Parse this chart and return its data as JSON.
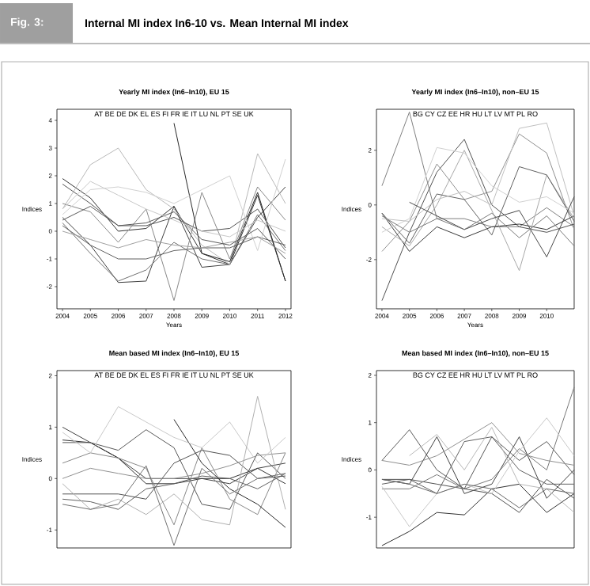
{
  "chart_data": [
    {
      "type": "line",
      "title": "Yearly MI index (In6–In10), EU 15",
      "xlabel": "Years",
      "ylabel": "Indices",
      "annotations": [
        "Fig. 3:",
        "Internal MI index In6-10 vs. Mean Internal MI index",
        "AT BE DE DK EL ES FI FR IE IT LU NL PT SE UK"
      ],
      "x": [
        2004,
        2005,
        2006,
        2007,
        2008,
        2009,
        2010,
        2011,
        2012
      ],
      "xlim": [
        2003.8,
        2012.2
      ],
      "ylim": [
        -2.8,
        4.4
      ],
      "xticks": [
        2004,
        2005,
        2006,
        2007,
        2008,
        2009,
        2010,
        2011,
        2012
      ],
      "yticks": [
        -2,
        -1,
        0,
        1,
        2,
        3,
        4
      ],
      "series": [
        {
          "color": "#303030",
          "values": [
            1.9,
            1.2,
            0.0,
            0.1,
            0.9,
            -0.8,
            -1.2,
            1.3,
            -1.8
          ]
        },
        {
          "color": "#505050",
          "values": [
            1.7,
            1.0,
            0.2,
            0.2,
            0.5,
            0.0,
            0.1,
            0.8,
            -0.6
          ]
        },
        {
          "color": "#404040",
          "values": [
            0.5,
            -0.5,
            -1.85,
            -1.8,
            0.9,
            -1.3,
            -1.2,
            0.5,
            1.6
          ]
        },
        {
          "color": "#707070",
          "values": [
            0.3,
            -0.8,
            -1.8,
            -1.4,
            -0.4,
            -1.0,
            -1.2,
            0.6,
            -0.7
          ]
        },
        {
          "color": "#b8b8b8",
          "values": [
            0.8,
            2.4,
            3.0,
            1.5,
            0.8,
            -0.5,
            -1.2,
            2.8,
            1.0
          ]
        },
        {
          "color": "#888888",
          "values": [
            1.0,
            0.7,
            -0.4,
            0.8,
            -2.5,
            1.4,
            -1.0,
            1.6,
            0.4
          ]
        },
        {
          "color": "#282828",
          "values": [
            null,
            null,
            null,
            null,
            3.9,
            -0.8,
            -1.1,
            1.4,
            -1.8
          ]
        },
        {
          "color": "#606060",
          "values": [
            0.2,
            -0.5,
            -1.0,
            -1.0,
            -0.7,
            -0.6,
            -0.6,
            -0.2,
            -0.5
          ]
        },
        {
          "color": "#d0d0d0",
          "values": [
            0.6,
            1.5,
            1.6,
            1.4,
            1.0,
            1.5,
            2.0,
            -0.7,
            2.6
          ]
        },
        {
          "color": "#a0a0a0",
          "values": [
            0.0,
            -0.3,
            -0.6,
            -0.3,
            -0.5,
            -0.6,
            -0.4,
            -0.2,
            -0.8
          ]
        },
        {
          "color": "#585858",
          "values": [
            0.4,
            0.9,
            0.2,
            0.3,
            0.7,
            -0.3,
            -0.5,
            0.1,
            -1.0
          ]
        },
        {
          "color": "#c8c8c8",
          "values": [
            0.8,
            1.8,
            1.3,
            0.8,
            0.4,
            0.0,
            -0.2,
            0.4,
            0.0
          ]
        }
      ]
    },
    {
      "type": "line",
      "title": "Yearly MI index (In6–In10), non–EU 15",
      "xlabel": "Years",
      "ylabel": "Indices",
      "annotations": [
        "BG CY CZ EE HR HU LT LV MT PL RO"
      ],
      "x": [
        2004,
        2005,
        2006,
        2007,
        2008,
        2009,
        2010,
        2011
      ],
      "xlim": [
        2003.8,
        2011.0
      ],
      "ylim": [
        -3.8,
        3.5
      ],
      "xticks": [
        2004,
        2005,
        2006,
        2007,
        2008,
        2009,
        2010
      ],
      "yticks": [
        -2,
        0,
        2
      ],
      "series": [
        {
          "color": "#808080",
          "values": [
            0.7,
            3.4,
            -0.5,
            -0.5,
            -0.8,
            -0.8,
            -0.1,
            -0.8
          ]
        },
        {
          "color": "#909090",
          "values": [
            -1.7,
            -0.6,
            1.5,
            0.2,
            0.5,
            2.6,
            1.9,
            -0.9
          ]
        },
        {
          "color": "#505050",
          "values": [
            -3.5,
            -1.0,
            1.2,
            2.4,
            0.0,
            -0.8,
            -1.0,
            -0.7
          ]
        },
        {
          "color": "#383838",
          "values": [
            -0.3,
            -1.7,
            -0.8,
            -1.2,
            -0.8,
            -0.7,
            -0.9,
            -0.4
          ]
        },
        {
          "color": "#a8a8a8",
          "values": [
            -0.8,
            -1.5,
            0.0,
            2.0,
            -0.2,
            -2.4,
            1.1,
            -0.5
          ]
        },
        {
          "color": "#606060",
          "values": [
            -0.3,
            -1.4,
            0.4,
            0.2,
            -1.1,
            1.4,
            1.1,
            -0.6
          ]
        },
        {
          "color": "#d0d0d0",
          "values": [
            -1.0,
            -0.5,
            2.1,
            1.9,
            0.7,
            0.1,
            0.3,
            -0.3
          ]
        },
        {
          "color": "#c0c0c0",
          "values": [
            -0.5,
            -0.6,
            0.2,
            0.5,
            0.0,
            2.8,
            3.0,
            -0.4
          ]
        },
        {
          "color": "#484848",
          "values": [
            null,
            0.1,
            -0.4,
            -0.9,
            -0.5,
            -0.2,
            -1.9,
            0.3
          ]
        },
        {
          "color": "#787878",
          "values": [
            -0.4,
            -1.0,
            -0.5,
            -0.9,
            -0.3,
            -1.2,
            -0.4,
            -1.5
          ]
        }
      ]
    },
    {
      "type": "line",
      "title": "Mean based MI index (In6–In10), EU 15",
      "ylabel": "Indices",
      "annotations": [
        "AT BE DE DK EL ES FI FR IE IT LU NL PT SE UK"
      ],
      "x": [
        2004,
        2005,
        2006,
        2007,
        2008,
        2009,
        2010,
        2011,
        2012
      ],
      "xlim": [
        2003.8,
        2012.2
      ],
      "ylim": [
        -1.35,
        2.1
      ],
      "yticks": [
        -1,
        0,
        1,
        2
      ],
      "series": [
        {
          "color": "#404040",
          "values": [
            1.0,
            0.7,
            0.4,
            0.0,
            0.0,
            0.0,
            -0.1,
            0.2,
            0.3
          ]
        },
        {
          "color": "#303030",
          "values": [
            0.75,
            0.7,
            0.4,
            -0.1,
            -0.1,
            0.0,
            0.0,
            0.2,
            -0.1
          ]
        },
        {
          "color": "#585858",
          "values": [
            0.7,
            0.7,
            0.55,
            0.95,
            0.6,
            -0.5,
            -0.6,
            0.5,
            0.0
          ]
        },
        {
          "color": "#888888",
          "values": [
            0.3,
            0.5,
            0.4,
            0.2,
            -0.9,
            0.6,
            -0.4,
            -0.7,
            0.5
          ]
        },
        {
          "color": "#282828",
          "values": [
            null,
            null,
            null,
            null,
            1.15,
            0.3,
            -0.2,
            -0.5,
            -0.95
          ]
        },
        {
          "color": "#606060",
          "values": [
            -0.4,
            -0.45,
            -0.6,
            -0.2,
            -0.1,
            0.05,
            0.0,
            -0.2,
            0.1
          ]
        },
        {
          "color": "#505050",
          "values": [
            -0.3,
            -0.3,
            -0.3,
            -0.4,
            0.3,
            0.55,
            0.45,
            0.0,
            0.05
          ]
        },
        {
          "color": "#909090",
          "values": [
            0.0,
            0.2,
            0.1,
            0.0,
            0.0,
            0.1,
            0.25,
            0.45,
            0.5
          ]
        },
        {
          "color": "#c8c8c8",
          "values": [
            0.9,
            0.5,
            1.4,
            1.1,
            0.8,
            0.6,
            1.1,
            0.3,
            0.8
          ]
        },
        {
          "color": "#b0b0b0",
          "values": [
            -0.1,
            -0.6,
            -0.4,
            -0.7,
            -0.3,
            -0.8,
            -0.9,
            1.6,
            -0.6
          ]
        },
        {
          "color": "#707070",
          "values": [
            -0.5,
            -0.6,
            -0.5,
            0.25,
            -1.3,
            0.2,
            -0.3,
            0.0,
            0.1
          ]
        }
      ]
    },
    {
      "type": "line",
      "title": "Mean based MI index (In6–In10), non–EU 15",
      "ylabel": "Indices",
      "annotations": [
        "BG CY CZ EE HR HU LT LV MT PL RO"
      ],
      "x": [
        2004,
        2005,
        2006,
        2007,
        2008,
        2009,
        2010,
        2011
      ],
      "xlim": [
        2003.8,
        2011.0
      ],
      "ylim": [
        -1.65,
        2.1
      ],
      "yticks": [
        -1,
        0,
        1,
        2
      ],
      "series": [
        {
          "color": "#585858",
          "values": [
            0.2,
            0.85,
            0.0,
            -0.4,
            0.7,
            0.2,
            0.6,
            -0.1
          ]
        },
        {
          "color": "#404040",
          "values": [
            -0.2,
            -0.3,
            0.7,
            -0.5,
            -0.3,
            0.7,
            -0.6,
            0.0
          ]
        },
        {
          "color": "#303030",
          "values": [
            -1.6,
            -1.3,
            -0.9,
            -0.95,
            -0.4,
            -0.3,
            -0.9,
            -0.5
          ]
        },
        {
          "color": "#909090",
          "values": [
            0.2,
            0.1,
            0.3,
            0.65,
            1.0,
            0.35,
            0.2,
            0.1
          ]
        },
        {
          "color": "#505050",
          "values": [
            -0.2,
            -0.2,
            -0.3,
            -0.4,
            -0.5,
            -0.9,
            -0.2,
            -0.6
          ]
        },
        {
          "color": "#787878",
          "values": [
            -0.4,
            -0.4,
            -0.1,
            -0.4,
            -0.2,
            0.45,
            0.0,
            1.75
          ]
        },
        {
          "color": "#606060",
          "values": [
            -0.3,
            -0.2,
            -0.5,
            0.6,
            0.7,
            0.0,
            -0.3,
            -0.3
          ]
        },
        {
          "color": "#c8c8c8",
          "values": [
            -0.35,
            -1.2,
            -0.5,
            -0.3,
            -0.5,
            0.4,
            1.1,
            0.3
          ]
        },
        {
          "color": "#b8b8b8",
          "values": [
            null,
            0.3,
            0.75,
            0.0,
            0.9,
            -0.3,
            -0.4,
            -0.9
          ]
        },
        {
          "color": "#686868",
          "values": [
            -0.2,
            -0.3,
            -0.5,
            -0.3,
            -0.4,
            -0.8,
            -0.4,
            -0.5
          ]
        }
      ]
    }
  ]
}
